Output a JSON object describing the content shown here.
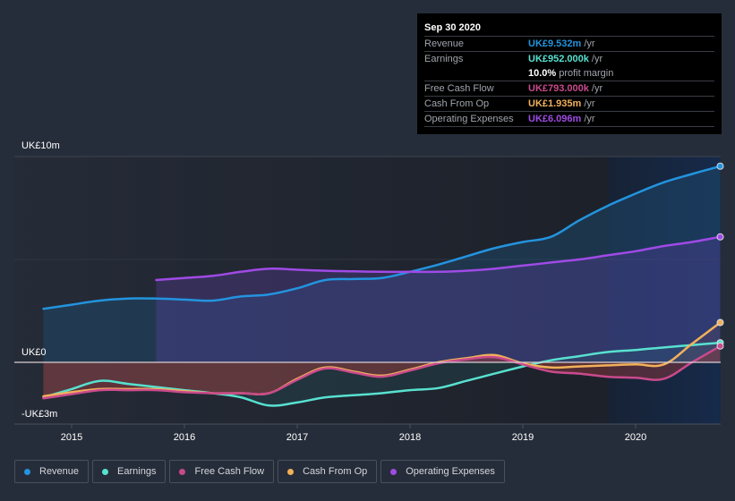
{
  "tooltip": {
    "date": "Sep 30 2020",
    "rows": [
      {
        "label": "Revenue",
        "value": "UK£9.532m",
        "unit": "/yr",
        "color": "#2394df"
      },
      {
        "label": "Earnings",
        "value": "UK£952.000k",
        "unit": "/yr",
        "color": "#58e1d0"
      },
      {
        "label": "",
        "value": "10.0%",
        "unit": "profit margin",
        "color": "#ffffff"
      },
      {
        "label": "Free Cash Flow",
        "value": "UK£793.000k",
        "unit": "/yr",
        "color": "#c94a8c"
      },
      {
        "label": "Cash From Op",
        "value": "UK£1.935m",
        "unit": "/yr",
        "color": "#f1b15a"
      },
      {
        "label": "Operating Expenses",
        "value": "UK£6.096m",
        "unit": "/yr",
        "color": "#a04ae6"
      }
    ]
  },
  "legend": [
    {
      "label": "Revenue",
      "color": "#2394df"
    },
    {
      "label": "Earnings",
      "color": "#58e1d0"
    },
    {
      "label": "Free Cash Flow",
      "color": "#c94a8c"
    },
    {
      "label": "Cash From Op",
      "color": "#f1b15a"
    },
    {
      "label": "Operating Expenses",
      "color": "#a04ae6"
    }
  ],
  "chart_data": {
    "type": "line",
    "title": "",
    "currency": "GBP",
    "units": "millions",
    "y_axis_labels": [
      "UK£10m",
      "UK£0",
      "-UK£3m"
    ],
    "ylim": [
      -3,
      10
    ],
    "xlim": [
      2014.6,
      2020.75
    ],
    "x_tick_labels": [
      "2015",
      "2016",
      "2017",
      "2018",
      "2019",
      "2020"
    ],
    "x_ticks": [
      2015,
      2016,
      2017,
      2018,
      2019,
      2020
    ],
    "highlight_from": 2019.75,
    "grid": true,
    "legend_position": "bottom-left",
    "series": [
      {
        "name": "Revenue",
        "color": "#2394df",
        "x": [
          2014.75,
          2015.0,
          2015.25,
          2015.5,
          2015.75,
          2016.0,
          2016.25,
          2016.5,
          2016.75,
          2017.0,
          2017.25,
          2017.5,
          2017.75,
          2018.0,
          2018.25,
          2018.5,
          2018.75,
          2019.0,
          2019.25,
          2019.5,
          2019.75,
          2020.0,
          2020.25,
          2020.5,
          2020.75
        ],
        "y": [
          2.6,
          2.8,
          3.0,
          3.1,
          3.1,
          3.05,
          3.0,
          3.2,
          3.3,
          3.6,
          4.0,
          4.05,
          4.1,
          4.4,
          4.75,
          5.15,
          5.55,
          5.85,
          6.1,
          6.9,
          7.6,
          8.2,
          8.75,
          9.15,
          9.532
        ]
      },
      {
        "name": "Earnings",
        "color": "#58e1d0",
        "x": [
          2014.75,
          2015.0,
          2015.25,
          2015.5,
          2015.75,
          2016.0,
          2016.25,
          2016.5,
          2016.75,
          2017.0,
          2017.25,
          2017.5,
          2017.75,
          2018.0,
          2018.25,
          2018.5,
          2018.75,
          2019.0,
          2019.25,
          2019.5,
          2019.75,
          2020.0,
          2020.25,
          2020.5,
          2020.75
        ],
        "y": [
          -1.7,
          -1.3,
          -0.9,
          -1.05,
          -1.2,
          -1.35,
          -1.5,
          -1.7,
          -2.1,
          -1.95,
          -1.7,
          -1.6,
          -1.5,
          -1.35,
          -1.25,
          -0.9,
          -0.55,
          -0.2,
          0.1,
          0.3,
          0.5,
          0.6,
          0.72,
          0.84,
          0.952
        ]
      },
      {
        "name": "Free Cash Flow",
        "color": "#c94a8c",
        "x": [
          2014.75,
          2015.0,
          2015.25,
          2015.5,
          2015.75,
          2016.0,
          2016.25,
          2016.5,
          2016.75,
          2017.0,
          2017.25,
          2017.5,
          2017.75,
          2018.0,
          2018.25,
          2018.5,
          2018.75,
          2019.0,
          2019.25,
          2019.5,
          2019.75,
          2020.0,
          2020.25,
          2020.5,
          2020.75
        ],
        "y": [
          -1.75,
          -1.55,
          -1.35,
          -1.35,
          -1.35,
          -1.45,
          -1.5,
          -1.5,
          -1.5,
          -0.85,
          -0.3,
          -0.5,
          -0.7,
          -0.4,
          -0.05,
          0.15,
          0.25,
          -0.1,
          -0.45,
          -0.55,
          -0.7,
          -0.75,
          -0.8,
          0.0,
          0.793
        ]
      },
      {
        "name": "Cash From Op",
        "color": "#f1b15a",
        "x": [
          2014.75,
          2015.0,
          2015.25,
          2015.5,
          2015.75,
          2016.0,
          2016.25,
          2016.5,
          2016.75,
          2017.0,
          2017.25,
          2017.5,
          2017.75,
          2018.0,
          2018.25,
          2018.5,
          2018.75,
          2019.0,
          2019.25,
          2019.5,
          2019.75,
          2020.0,
          2020.25,
          2020.5,
          2020.75
        ],
        "y": [
          -1.65,
          -1.45,
          -1.3,
          -1.3,
          -1.3,
          -1.4,
          -1.5,
          -1.5,
          -1.5,
          -0.8,
          -0.25,
          -0.45,
          -0.65,
          -0.35,
          0.0,
          0.2,
          0.35,
          -0.05,
          -0.25,
          -0.2,
          -0.15,
          -0.1,
          -0.1,
          0.9,
          1.935
        ]
      },
      {
        "name": "Operating Expenses",
        "color": "#a04ae6",
        "x": [
          2015.75,
          2016.0,
          2016.25,
          2016.5,
          2016.75,
          2017.0,
          2017.25,
          2017.5,
          2017.75,
          2018.0,
          2018.25,
          2018.5,
          2018.75,
          2019.0,
          2019.25,
          2019.5,
          2019.75,
          2020.0,
          2020.25,
          2020.5,
          2020.75
        ],
        "y": [
          4.0,
          4.1,
          4.2,
          4.4,
          4.55,
          4.5,
          4.45,
          4.42,
          4.4,
          4.4,
          4.4,
          4.45,
          4.55,
          4.7,
          4.85,
          5.0,
          5.2,
          5.4,
          5.65,
          5.85,
          6.096
        ]
      }
    ]
  }
}
